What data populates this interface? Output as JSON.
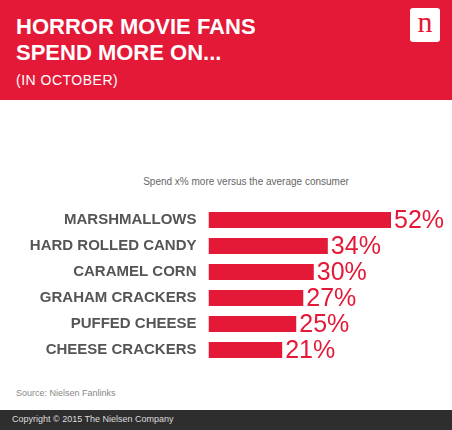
{
  "chart_data": {
    "type": "bar",
    "orientation": "horizontal",
    "title": "HORROR MOVIE FANS SPEND MORE ON...",
    "subtitle": "(IN OCTOBER)",
    "logo": "n",
    "x_label": "Spend x% more versus the average consumer",
    "source": "Source: Nielsen Fanlinks",
    "footer": "Copyright © 2015 The Nielsen Company",
    "categories": [
      "MARSHMALLOWS",
      "HARD ROLLED CANDY",
      "CARAMEL CORN",
      "GRAHAM CRACKERS",
      "PUFFED CHEESE",
      "CHEESE CRACKERS"
    ],
    "values": [
      52,
      34,
      30,
      27,
      25,
      21
    ],
    "value_labels": [
      "52%",
      "34%",
      "30%",
      "27%",
      "25%",
      "21%"
    ],
    "color": "#e31937",
    "xlim": [
      0,
      52
    ],
    "grid": false,
    "data_labels": true,
    "tick_labels": "y"
  }
}
